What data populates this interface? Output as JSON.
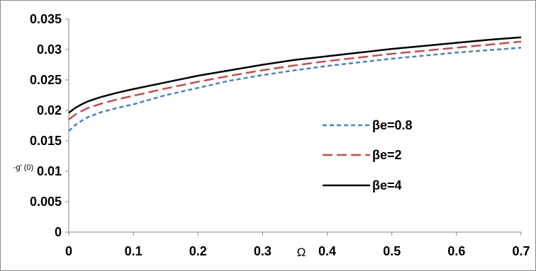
{
  "chart_data": {
    "type": "line",
    "title": "",
    "xlabel": "Ω",
    "ylabel": "-g' (0)",
    "xlim": [
      0,
      0.7
    ],
    "ylim": [
      0,
      0.035
    ],
    "x_ticks": [
      "0",
      "0.1",
      "0.2",
      "0.3",
      "0.4",
      "0.5",
      "0.6",
      "0.7"
    ],
    "y_ticks": [
      "0",
      "0.005",
      "0.01",
      "0.015",
      "0.02",
      "0.025",
      "0.03",
      "0.035"
    ],
    "grid": false,
    "legend_position": "right",
    "x": [
      0,
      0.01,
      0.02,
      0.03,
      0.05,
      0.075,
      0.1,
      0.15,
      0.2,
      0.25,
      0.3,
      0.35,
      0.4,
      0.45,
      0.5,
      0.55,
      0.6,
      0.65,
      0.7
    ],
    "series": [
      {
        "name": "βe=0.8",
        "color": "#4f81bd",
        "dash": "short",
        "values": [
          0.0166,
          0.0176,
          0.0183,
          0.0189,
          0.0197,
          0.0204,
          0.021,
          0.0225,
          0.0237,
          0.0249,
          0.0258,
          0.0266,
          0.0273,
          0.0279,
          0.0285,
          0.029,
          0.0295,
          0.0299,
          0.0303
        ]
      },
      {
        "name": "βe=2",
        "color": "#c0504d",
        "dash": "long",
        "values": [
          0.0185,
          0.0193,
          0.0199,
          0.0204,
          0.0211,
          0.0218,
          0.0224,
          0.0236,
          0.0247,
          0.0257,
          0.0266,
          0.0274,
          0.0281,
          0.0287,
          0.0293,
          0.0298,
          0.0303,
          0.0308,
          0.0313
        ]
      },
      {
        "name": "βe=4",
        "color": "#000000",
        "dash": "solid",
        "values": [
          0.0196,
          0.0204,
          0.021,
          0.0215,
          0.0222,
          0.0229,
          0.0235,
          0.0246,
          0.0257,
          0.0266,
          0.0275,
          0.0283,
          0.0289,
          0.0295,
          0.0301,
          0.0306,
          0.0311,
          0.0316,
          0.032
        ]
      }
    ]
  }
}
